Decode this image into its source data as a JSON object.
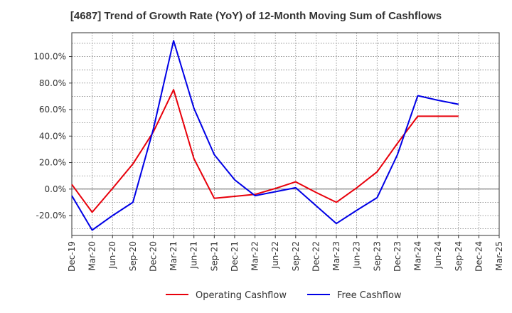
{
  "chart_data": {
    "type": "line",
    "title": "[4687]  Trend of Growth Rate (YoY) of 12-Month Moving Sum of Cashflows",
    "xlabel": "",
    "ylabel": "",
    "categories": [
      "Dec-19",
      "Mar-20",
      "Jun-20",
      "Sep-20",
      "Dec-20",
      "Mar-21",
      "Jun-21",
      "Sep-21",
      "Dec-21",
      "Mar-22",
      "Jun-22",
      "Sep-22",
      "Dec-22",
      "Mar-23",
      "Jun-23",
      "Sep-23",
      "Dec-23",
      "Mar-24",
      "Jun-24",
      "Sep-24",
      "Dec-24",
      "Mar-25"
    ],
    "ylim": [
      -35,
      118
    ],
    "yticks": [
      -20,
      0,
      20,
      40,
      60,
      80,
      100
    ],
    "ytick_labels": [
      "-20.0%",
      "0.0%",
      "20.0%",
      "40.0%",
      "60.0%",
      "80.0%",
      "100.0%"
    ],
    "grid": true,
    "legend_position": "bottom",
    "series": [
      {
        "name": "Operating Cashflow",
        "color": "#e8000b",
        "values": [
          3.5,
          -17.5,
          0.5,
          19,
          43,
          75,
          23,
          -7,
          -5.5,
          -4,
          0.5,
          5.5,
          -2.5,
          -10,
          1,
          13,
          34.5,
          55,
          55,
          55,
          null,
          null
        ]
      },
      {
        "name": "Free Cashflow",
        "color": "#0000e6",
        "values": [
          -5,
          -31,
          -20,
          -10,
          45,
          112,
          61,
          26,
          7,
          -5,
          -2,
          1,
          -12.5,
          -26,
          -16,
          -6.5,
          26,
          70.5,
          67,
          64,
          null,
          null
        ]
      }
    ]
  }
}
